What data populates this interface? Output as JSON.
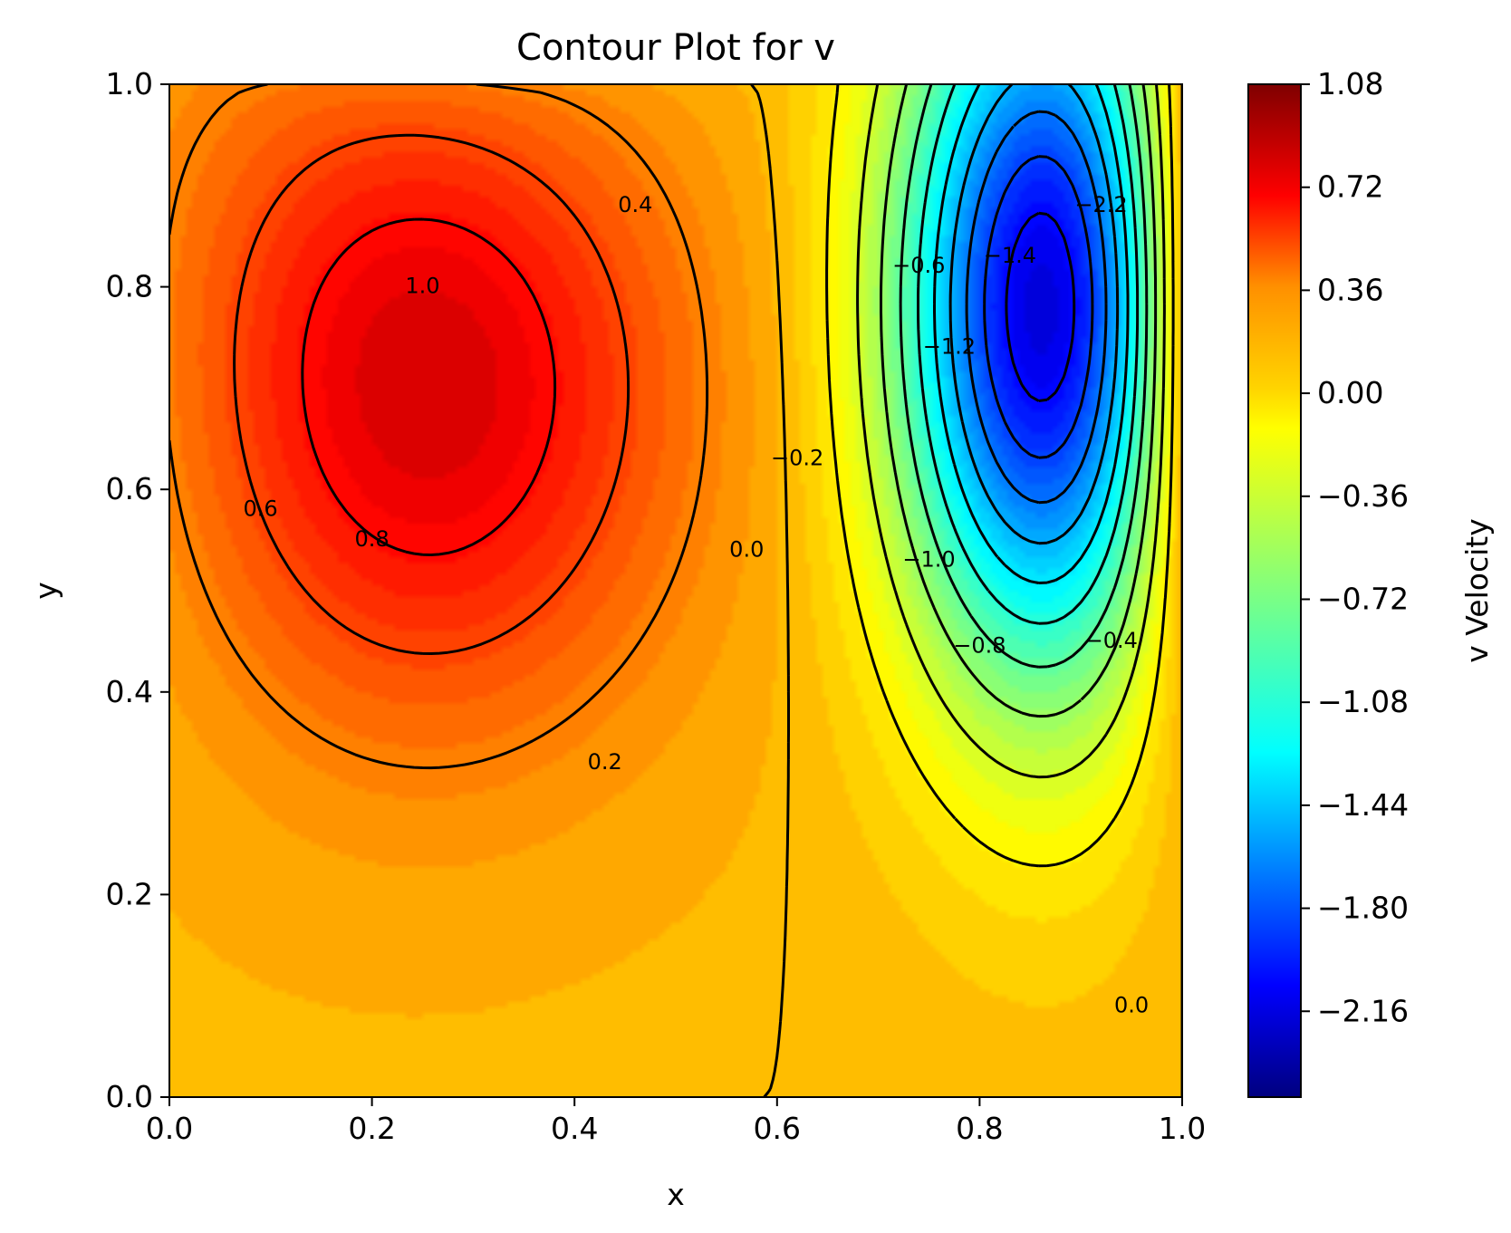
{
  "chart_data": {
    "type": "contour",
    "title": "Contour Plot for v",
    "xlabel": "x",
    "ylabel": "y",
    "xlim": [
      0.0,
      1.0
    ],
    "ylim": [
      0.0,
      1.0
    ],
    "x_ticks": [
      "0.0",
      "0.2",
      "0.4",
      "0.6",
      "0.8",
      "1.0"
    ],
    "y_ticks": [
      "0.0",
      "0.2",
      "0.4",
      "0.6",
      "0.8",
      "1.0"
    ],
    "colormap": "jet",
    "colorbar": {
      "label": "v Velocity",
      "range": [
        -2.46,
        1.08
      ],
      "ticks": [
        "1.08",
        "0.72",
        "0.36",
        "0.00",
        "−0.36",
        "−0.72",
        "−1.08",
        "−1.44",
        "−1.80",
        "−2.16"
      ],
      "tick_values": [
        1.08,
        0.72,
        0.36,
        0.0,
        -0.36,
        -0.72,
        -1.08,
        -1.44,
        -1.8,
        -2.16
      ]
    },
    "field": {
      "positive_vortex": {
        "center": [
          0.2,
          0.75
        ],
        "peak": 1.08
      },
      "negative_vortex": {
        "center": [
          0.89,
          0.78
        ],
        "peak": -2.46
      }
    },
    "contour_labels": [
      {
        "text": "1.0",
        "x": 0.25,
        "y": 0.8
      },
      {
        "text": "0.8",
        "x": 0.2,
        "y": 0.55
      },
      {
        "text": "0.6",
        "x": 0.09,
        "y": 0.58
      },
      {
        "text": "0.4",
        "x": 0.46,
        "y": 0.88
      },
      {
        "text": "0.2",
        "x": 0.43,
        "y": 0.33
      },
      {
        "text": "0.0",
        "x": 0.57,
        "y": 0.54
      },
      {
        "text": "−0.2",
        "x": 0.62,
        "y": 0.63
      },
      {
        "text": "−0.6",
        "x": 0.74,
        "y": 0.82
      },
      {
        "text": "−1.4",
        "x": 0.83,
        "y": 0.83
      },
      {
        "text": "−1.2",
        "x": 0.77,
        "y": 0.74
      },
      {
        "text": "−2.2",
        "x": 0.92,
        "y": 0.88
      },
      {
        "text": "−1.0",
        "x": 0.75,
        "y": 0.53
      },
      {
        "text": "−0.8",
        "x": 0.8,
        "y": 0.445
      },
      {
        "text": "−0.4",
        "x": 0.93,
        "y": 0.45
      },
      {
        "text": "0.0",
        "x": 0.95,
        "y": 0.09
      }
    ],
    "contour_levels": [
      1.0,
      0.8,
      0.6,
      0.4,
      0.2,
      0.0,
      -0.2,
      -0.4,
      -0.6,
      -0.8,
      -1.0,
      -1.2,
      -1.4,
      -1.6,
      -1.8,
      -2.0,
      -2.2
    ]
  }
}
